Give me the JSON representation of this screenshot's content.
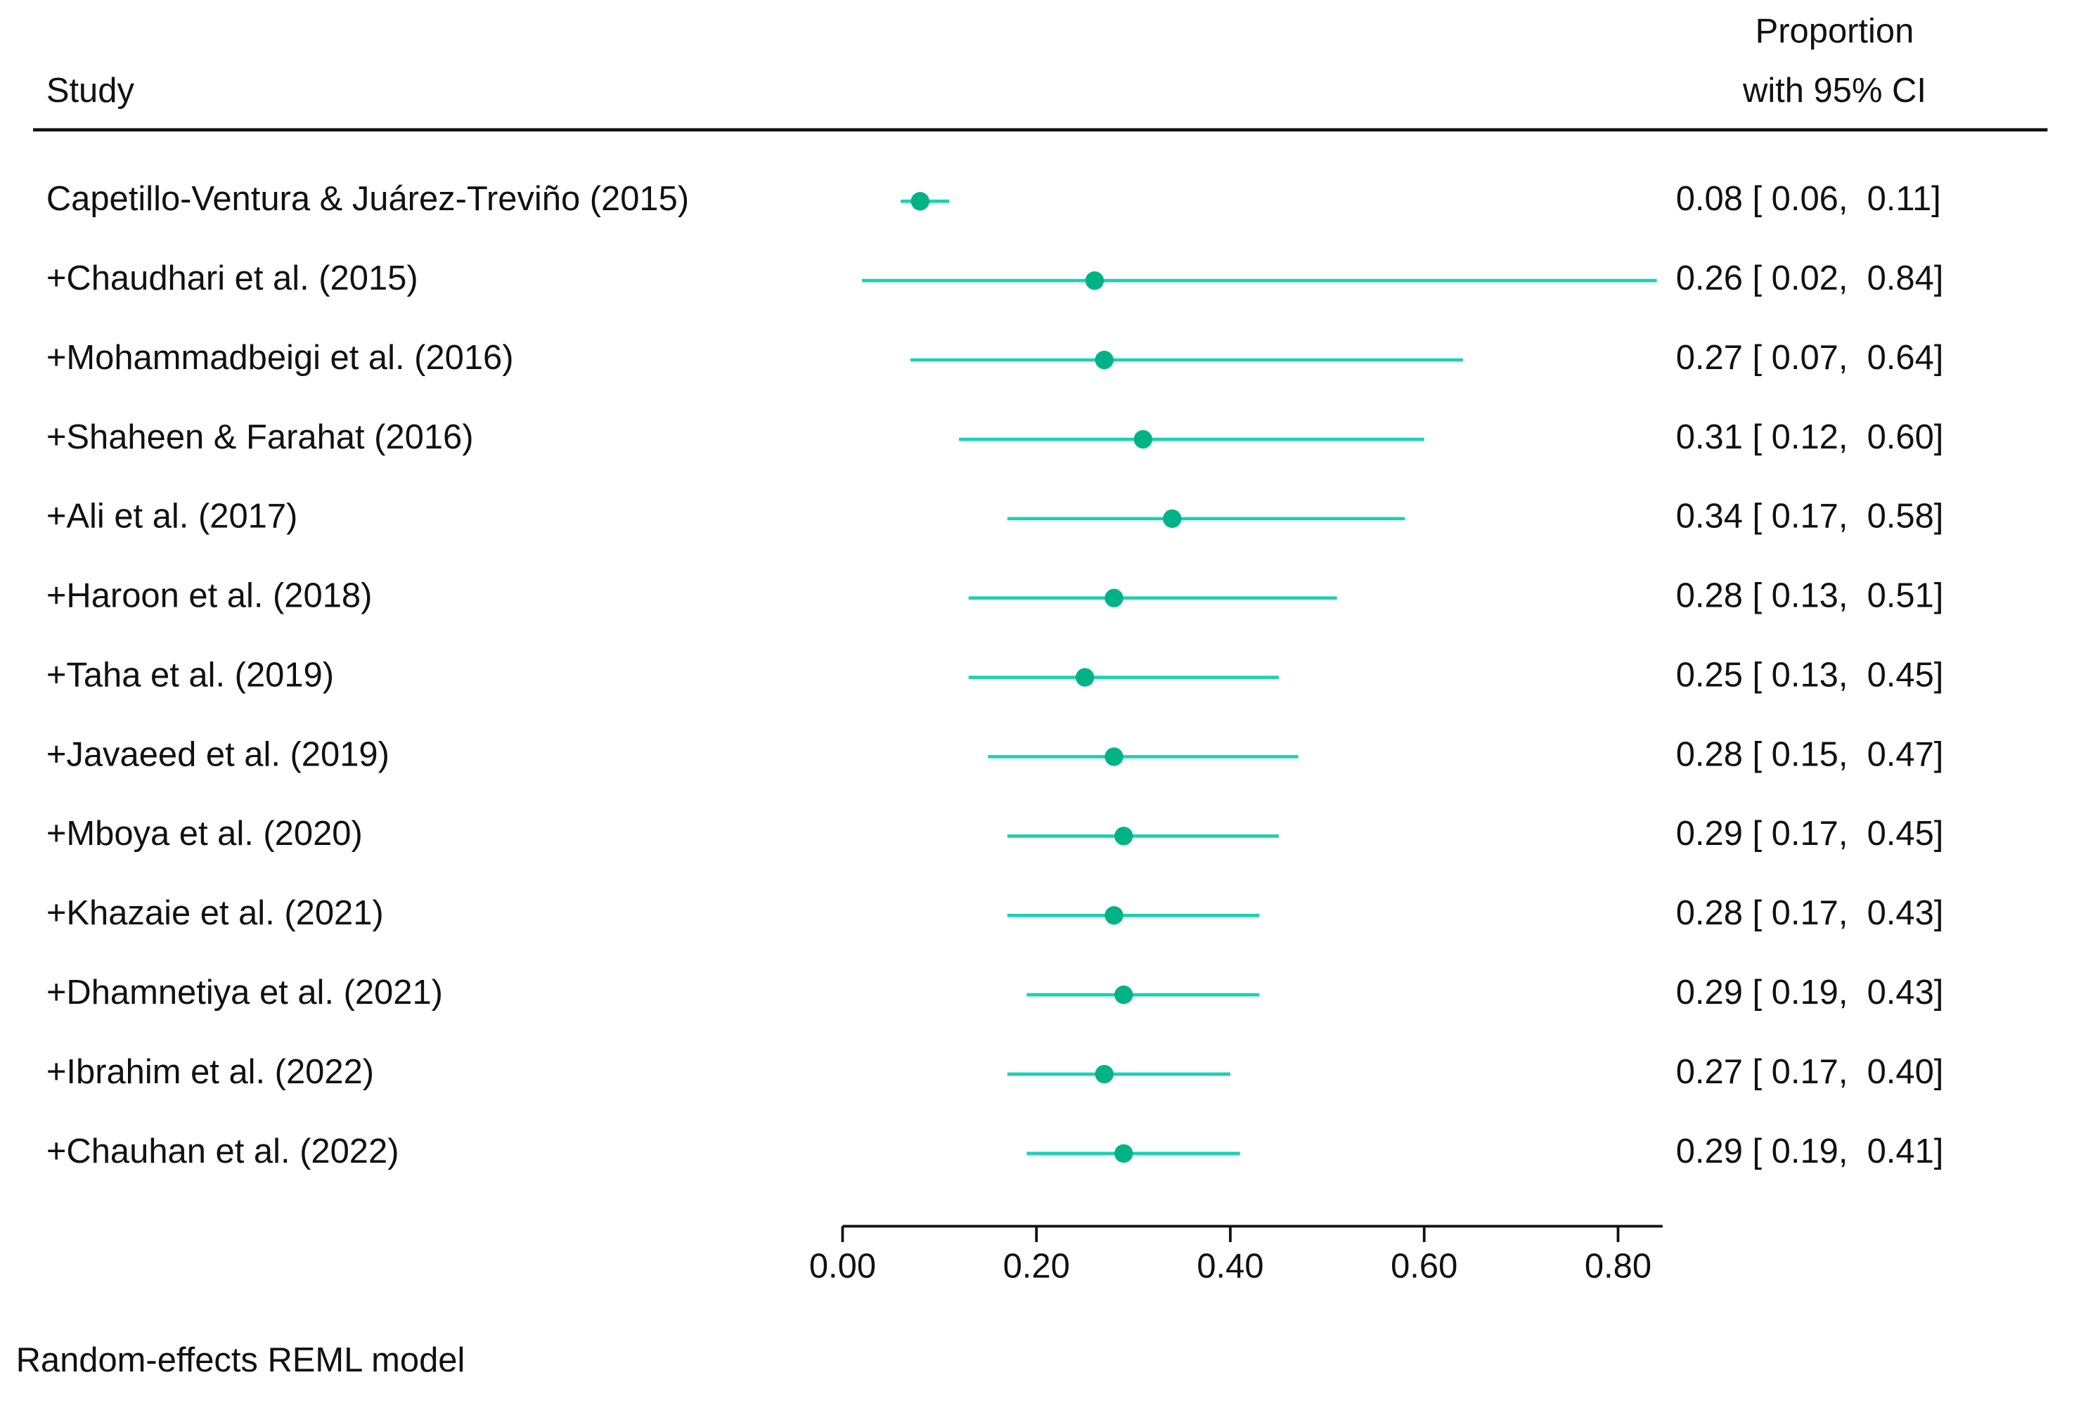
{
  "chart_data": {
    "type": "forest",
    "study_header": "Study",
    "estimate_header": [
      "Proportion",
      "with 95% CI"
    ],
    "footnote": "Random-effects REML model",
    "categories": [
      "Capetillo-Ventura & Juárez-Treviño (2015)",
      "+Chaudhari et al. (2015)",
      "+Mohammadbeigi et al. (2016)",
      "+Shaheen & Farahat (2016)",
      "+Ali et al. (2017)",
      "+Haroon et al. (2018)",
      "+Taha et al. (2019)",
      "+Javaeed et al. (2019)",
      "+Mboya et al. (2020)",
      "+Khazaie et al. (2021)",
      "+Dhamnetiya et al. (2021)",
      "+Ibrahim et al. (2022)",
      "+Chauhan et al. (2022)"
    ],
    "values": [
      0.08,
      0.26,
      0.27,
      0.31,
      0.34,
      0.28,
      0.25,
      0.28,
      0.29,
      0.28,
      0.29,
      0.27,
      0.29
    ],
    "lower": [
      0.06,
      0.02,
      0.07,
      0.12,
      0.17,
      0.13,
      0.13,
      0.15,
      0.17,
      0.17,
      0.19,
      0.17,
      0.19
    ],
    "upper": [
      0.11,
      0.84,
      0.64,
      0.6,
      0.58,
      0.51,
      0.45,
      0.47,
      0.45,
      0.43,
      0.43,
      0.4,
      0.41
    ],
    "value_labels": [
      "0.08 [ 0.06,  0.11]",
      "0.26 [ 0.02,  0.84]",
      "0.27 [ 0.07,  0.64]",
      "0.31 [ 0.12,  0.60]",
      "0.34 [ 0.17,  0.58]",
      "0.28 [ 0.13,  0.51]",
      "0.25 [ 0.13,  0.45]",
      "0.28 [ 0.15,  0.47]",
      "0.29 [ 0.17,  0.45]",
      "0.28 [ 0.17,  0.43]",
      "0.29 [ 0.19,  0.43]",
      "0.27 [ 0.17,  0.40]",
      "0.29 [ 0.19,  0.41]"
    ],
    "color": "#00b386",
    "ci_color": "#18d2b4",
    "xlim": [
      0,
      0.846
    ],
    "xticks": [
      {
        "value": 0,
        "label": "0.00"
      },
      {
        "value": 0.2,
        "label": "0.20"
      },
      {
        "value": 0.4,
        "label": "0.40"
      },
      {
        "value": 0.6,
        "label": "0.60"
      },
      {
        "value": 0.8,
        "label": "0.80"
      }
    ]
  }
}
